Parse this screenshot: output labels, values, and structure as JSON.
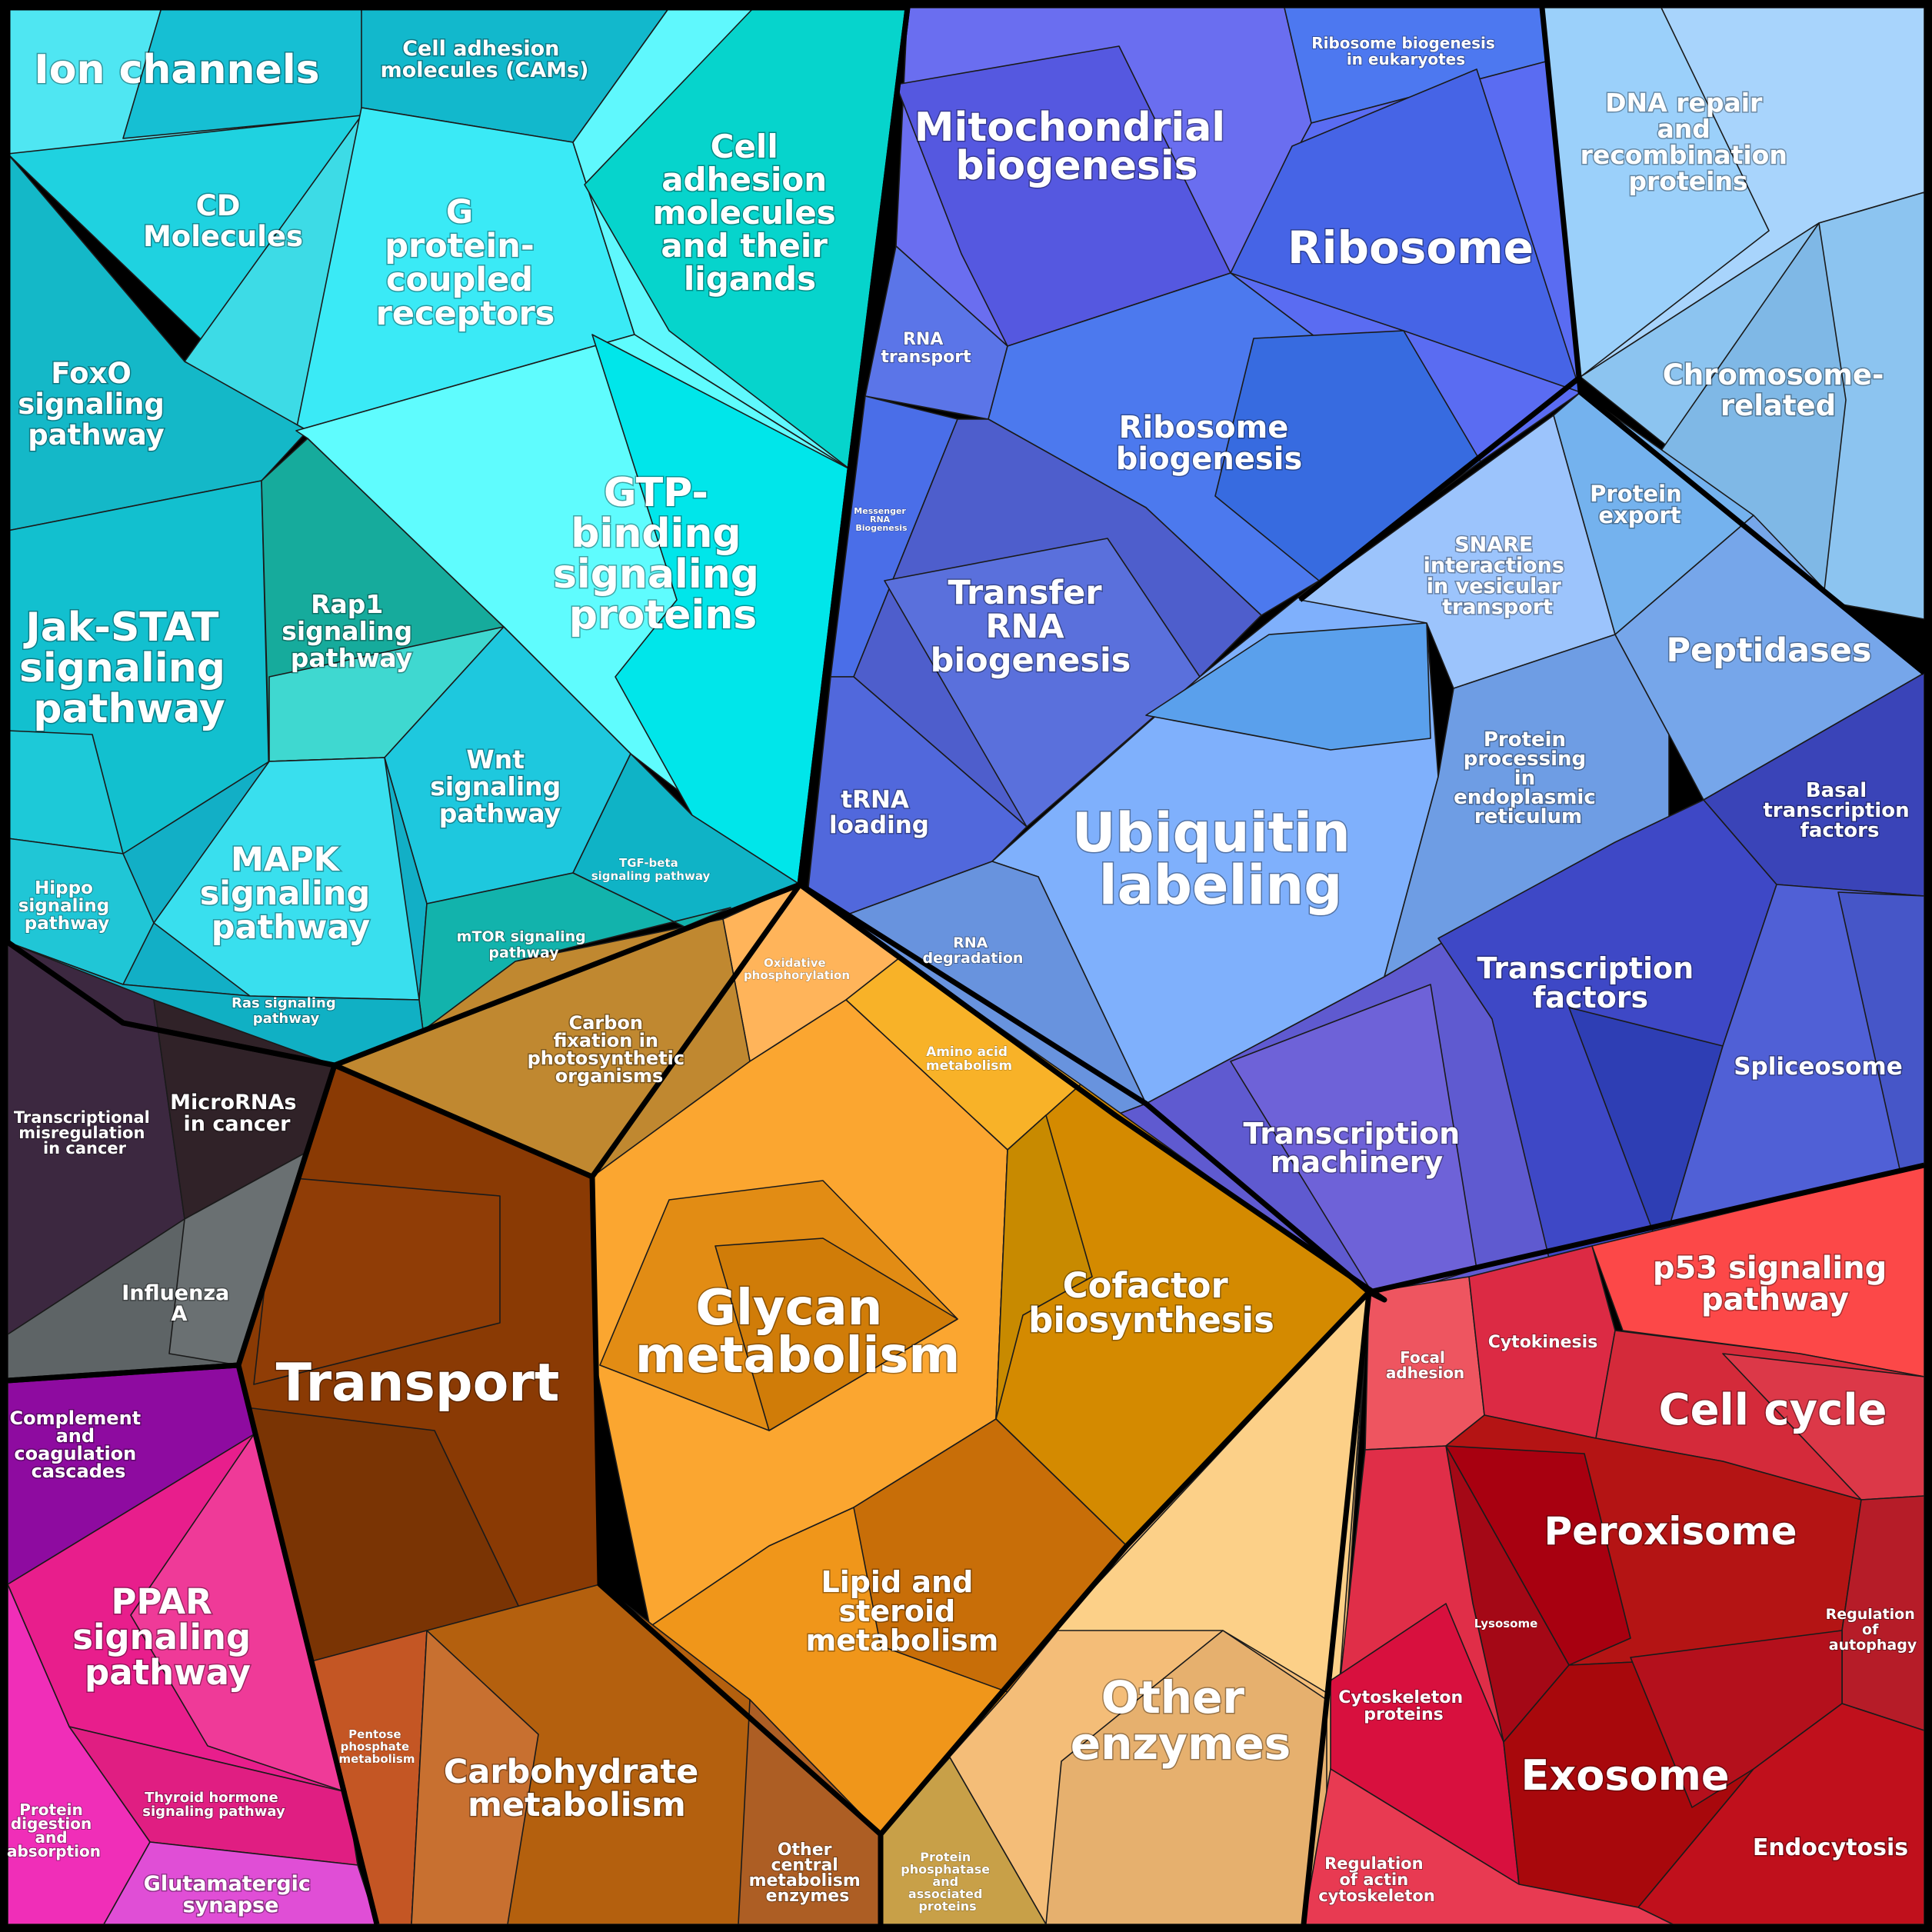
{
  "colors": {
    "cyan_group": "#22d3e6",
    "blue_group": "#5a6ff0",
    "lightblue_group": "#9ccaf6",
    "orange_group": "#f3a130",
    "brown_group": "#7a3a0a",
    "red_group": "#d92a3a",
    "dark_group": "#3a2a3c",
    "magenta_group": "#e81e8c",
    "border": "#000000"
  },
  "labels": {
    "ion_channels": "Ion channels",
    "cams": "Cell adhesion molecules (CAMs)",
    "cd_molecules": "CD Molecules",
    "gpcr": "G protein-coupled receptors",
    "cell_adhesion_ligands": "Cell adhesion molecules and their ligands",
    "foxo": "FoxO signaling pathway",
    "jak_stat": "Jak-STAT signaling pathway",
    "rap1": "Rap1 signaling pathway",
    "gtp_binding": "GTP-binding signaling proteins",
    "wnt": "Wnt signaling pathway",
    "tgf_beta": "TGF-beta signaling pathway",
    "mapk": "MAPK signaling pathway",
    "hippo": "Hippo signaling pathway",
    "mtor": "mTOR signaling pathway",
    "ras": "Ras signaling pathway",
    "mito_biogenesis": "Mitochondrial biogenesis",
    "ribosome_biogenesis_euk": "Ribosome biogenesis in eukaryotes",
    "ribosome": "Ribosome",
    "rna_transport": "RNA transport",
    "ribosome_biogenesis": "Ribosome biogenesis",
    "messenger_rna": "Messenger RNA Biogenesis",
    "transfer_rna": "Transfer RNA biogenesis",
    "trna_loading": "tRNA loading",
    "ubiquitin": "Ubiquitin labeling",
    "rna_degradation": "RNA degradation",
    "dna_repair": "DNA repair and recombination proteins",
    "chromosome": "Chromosome-related",
    "protein_export": "Protein export",
    "snare": "SNARE interactions in vesicular transport",
    "peptidases": "Peptidases",
    "protein_processing_er": "Protein processing in endoplasmic reticulum",
    "basal_tf": "Basal transcription factors",
    "transcription_factors": "Transcription factors",
    "spliceosome": "Spliceosome",
    "transcription_machinery": "Transcription machinery",
    "oxidative_phos": "Oxidative phosphorylation",
    "carbon_fixation": "Carbon fixation in photosynthetic organisms",
    "amino_acid": "Amino acid metabolism",
    "glycan": "Glycan metabolism",
    "cofactor": "Cofactor biosynthesis",
    "transport": "Transport",
    "lipid_steroid": "Lipid and steroid metabolism",
    "other_enzymes": "Other enzymes",
    "pentose": "Pentose phosphate metabolism",
    "carbohydrate": "Carbohydrate metabolism",
    "other_central": "Other central metabolism enzymes",
    "protein_phosphatase": "Protein phosphatase and associated proteins",
    "transcriptional_misreg": "Transcriptional misregulation in cancer",
    "micrornas": "MicroRNAs in cancer",
    "influenza": "Influenza A",
    "complement": "Complement and coagulation cascades",
    "ppar": "PPAR signaling pathway",
    "thyroid": "Thyroid hormone signaling pathway",
    "protein_digestion": "Protein digestion and absorption",
    "glutamatergic": "Glutamatergic synapse",
    "focal_adhesion": "Focal adhesion",
    "cytokinesis": "Cytokinesis",
    "p53": "p53 signaling pathway",
    "cell_cycle": "Cell cycle",
    "peroxisome": "Peroxisome",
    "lysosome": "Lysosome",
    "regulation_autophagy": "Regulation of autophagy",
    "cytoskeleton_proteins": "Cytoskeleton proteins",
    "exosome": "Exosome",
    "endocytosis": "Endocytosis",
    "regulation_actin": "Regulation of actin cytoskeleton"
  }
}
